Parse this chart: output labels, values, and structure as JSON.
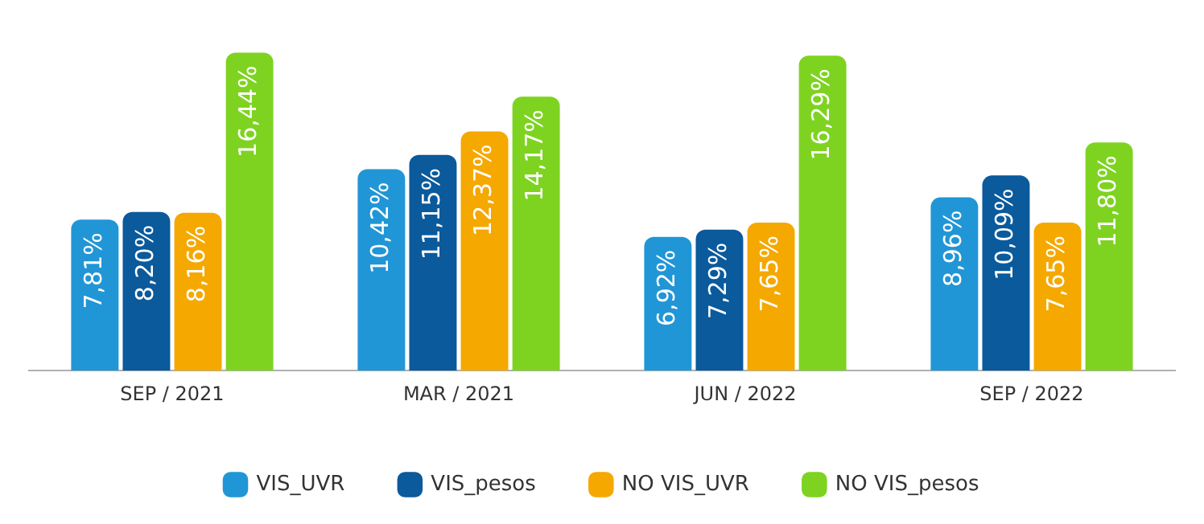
{
  "chart_data": {
    "type": "bar",
    "legend": "bottom",
    "grid": false,
    "tick_labels": "x",
    "categories": [
      "SEP / 2021",
      "MAR / 2021",
      "JUN / 2022",
      "SEP / 2022"
    ],
    "series": [
      {
        "name": "VIS_UVR",
        "color": "#2196d6",
        "values": [
          7.81,
          10.42,
          6.92,
          8.96
        ],
        "value_labels": [
          "7,81%",
          "10,42%",
          "6,92%",
          "8,96%"
        ]
      },
      {
        "name": "VIS_pesos",
        "color": "#0a5a9c",
        "values": [
          8.2,
          11.15,
          7.29,
          10.09
        ],
        "value_labels": [
          "8,20%",
          "11,15%",
          "7,29%",
          "10,09%"
        ]
      },
      {
        "name": "NO VIS_UVR",
        "color": "#f5a800",
        "values": [
          8.16,
          12.37,
          7.65,
          7.65
        ],
        "value_labels": [
          "8,16%",
          "12,37%",
          "7,65%",
          "7,65%"
        ]
      },
      {
        "name": "NO VIS_pesos",
        "color": "#7ed321",
        "values": [
          16.44,
          14.17,
          16.29,
          11.8
        ],
        "value_labels": [
          "16,44%",
          "14,17%",
          "16,29%",
          "11,80%"
        ]
      }
    ]
  }
}
